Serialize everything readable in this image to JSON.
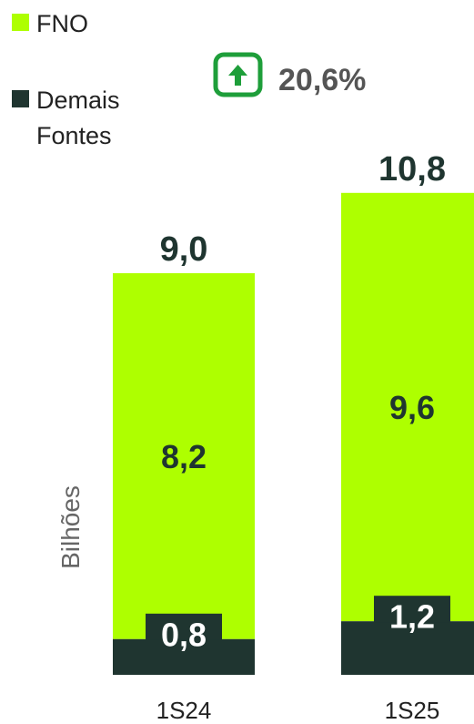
{
  "chart_data": {
    "type": "bar",
    "stacked": true,
    "categories": [
      "1S24",
      "1S25"
    ],
    "series": [
      {
        "name": "Demais Fontes",
        "values": [
          0.8,
          1.2
        ],
        "labels": [
          "0,8",
          "1,2"
        ],
        "color": "#1f3530"
      },
      {
        "name": "FNO",
        "values": [
          8.2,
          9.6
        ],
        "labels": [
          "8,2",
          "9,6"
        ],
        "color": "#aeff00"
      }
    ],
    "totals": [
      9.0,
      10.8
    ],
    "total_labels": [
      "9,0",
      "10,8"
    ],
    "ylabel": "Bilhões",
    "growth": {
      "label": "20,6%",
      "direction": "up",
      "icon": "arrow-up-icon",
      "color": "#1e9e3a"
    },
    "legend_position": "top-left",
    "grid": false
  }
}
